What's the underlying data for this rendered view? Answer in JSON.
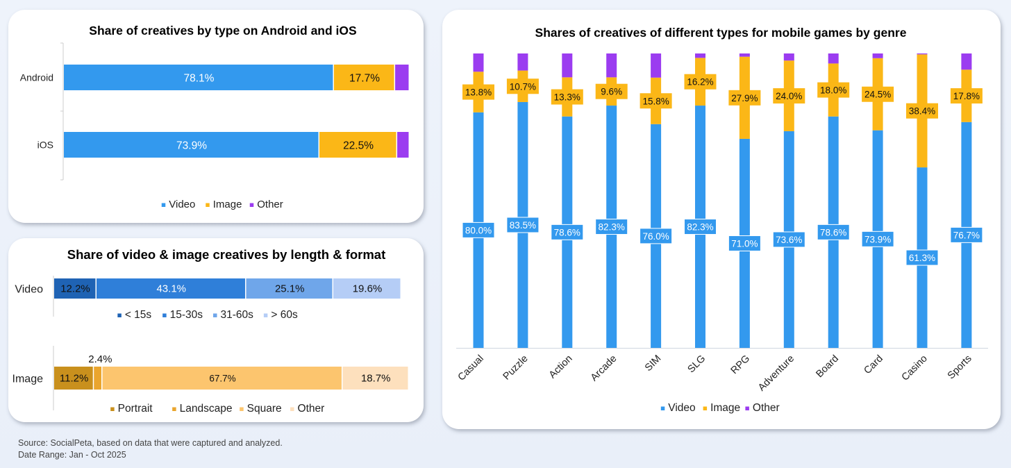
{
  "colors": {
    "video": "#3399ee",
    "image": "#fbb717",
    "other": "#9b3cf0",
    "vlen": [
      "#1f63b4",
      "#2f7fd9",
      "#6fa6ea",
      "#b5cdf6"
    ],
    "iform": [
      "#c9901d",
      "#eaa52e",
      "#fcc56e",
      "#fde0bd"
    ]
  },
  "chart_data": [
    {
      "type": "bar",
      "orientation": "horizontal-stacked",
      "title": "Share of creatives by type on Android and iOS",
      "categories": [
        "Android",
        "iOS"
      ],
      "series": [
        {
          "name": "Video",
          "values": [
            78.1,
            73.9
          ],
          "labels": [
            "78.1%",
            "73.9%"
          ]
        },
        {
          "name": "Image",
          "values": [
            17.7,
            22.5
          ],
          "labels": [
            "17.7%",
            "22.5%"
          ]
        },
        {
          "name": "Other",
          "values": [
            4.2,
            3.6
          ],
          "labels": [
            "",
            ""
          ]
        }
      ],
      "legend": [
        "Video",
        "Image",
        "Other"
      ]
    },
    {
      "type": "bar",
      "orientation": "horizontal-stacked",
      "title": "Share of video & image creatives by length & format",
      "rows": [
        {
          "label": "Video",
          "segments": [
            {
              "name": "< 15s",
              "value": 12.2,
              "label": "12.2%"
            },
            {
              "name": "15-30s",
              "value": 43.1,
              "label": "43.1%"
            },
            {
              "name": "31-60s",
              "value": 25.1,
              "label": "25.1%"
            },
            {
              "name": "> 60s",
              "value": 19.6,
              "label": "19.6%"
            }
          ],
          "legend": [
            "< 15s",
            "15-30s",
            "31-60s",
            "> 60s"
          ]
        },
        {
          "label": "Image",
          "segments": [
            {
              "name": "Portrait",
              "value": 11.2,
              "label": "11.2%"
            },
            {
              "name": "Landscape",
              "value": 2.4,
              "label": "2.4%"
            },
            {
              "name": "Square",
              "value": 67.7,
              "label": "67.7%"
            },
            {
              "name": "Other",
              "value": 18.7,
              "label": "18.7%"
            }
          ],
          "legend": [
            "Portrait",
            "Landscape",
            "Square",
            "Other"
          ]
        }
      ]
    },
    {
      "type": "bar",
      "orientation": "vertical-stacked",
      "title": "Shares of creatives of different types for mobile games by genre",
      "categories": [
        "Casual",
        "Puzzle",
        "Action",
        "Arcade",
        "SIM",
        "SLG",
        "RPG",
        "Adventure",
        "Board",
        "Card",
        "Casino",
        "Sports"
      ],
      "series": [
        {
          "name": "Video",
          "values": [
            80.0,
            83.5,
            78.6,
            82.3,
            76.0,
            82.3,
            71.0,
            73.6,
            78.6,
            73.9,
            61.3,
            76.7
          ],
          "labels": [
            "80.0%",
            "83.5%",
            "78.6%",
            "82.3%",
            "76.0%",
            "82.3%",
            "71.0%",
            "73.6%",
            "78.6%",
            "73.9%",
            "61.3%",
            "76.7%"
          ]
        },
        {
          "name": "Image",
          "values": [
            13.8,
            10.7,
            13.3,
            9.6,
            15.8,
            16.2,
            27.9,
            24.0,
            18.0,
            24.5,
            38.4,
            17.8
          ],
          "labels": [
            "13.8%",
            "10.7%",
            "13.3%",
            "9.6%",
            "15.8%",
            "16.2%",
            "27.9%",
            "24.0%",
            "18.0%",
            "24.5%",
            "38.4%",
            "17.8%"
          ]
        },
        {
          "name": "Other",
          "values": [
            6.2,
            5.8,
            8.1,
            8.1,
            8.2,
            1.5,
            1.1,
            2.4,
            3.4,
            1.6,
            0.3,
            5.5
          ],
          "labels": []
        }
      ],
      "ylim": [
        0,
        100
      ],
      "legend": [
        "Video",
        "Image",
        "Other"
      ]
    }
  ],
  "footer": {
    "source": "Source: SocialPeta, based on data that were captured and analyzed.",
    "date_range": "Date Range: Jan - Oct 2025"
  }
}
